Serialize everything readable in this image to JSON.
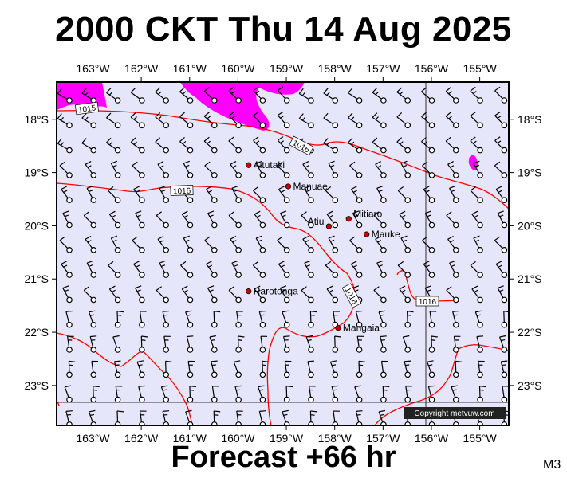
{
  "title": "2000 CKT Thu 14 Aug 2025",
  "subtitle": "Forecast +66 hr",
  "model_code": "M3",
  "copyright": "Copyright metvuw.com",
  "colors": {
    "background": "#e6e6fa",
    "isobar": "#ff0000",
    "precip": "#ff00ff",
    "frame": "#000000"
  },
  "map": {
    "lon_labels": [
      "163°W",
      "162°W",
      "161°W",
      "160°W",
      "159°W",
      "158°W",
      "157°W",
      "156°W",
      "155°W"
    ],
    "lat_labels": [
      "18°S",
      "19°S",
      "20°S",
      "21°S",
      "22°S",
      "23°S"
    ],
    "lon_values": [
      -163,
      -162,
      -161,
      -160,
      -159,
      -158,
      -157,
      -156,
      -155
    ],
    "lat_values": [
      -18,
      -19,
      -20,
      -21,
      -22,
      -23
    ],
    "extent": {
      "lon_min": -163.75,
      "lon_max": -154.4,
      "lat_max": -17.3,
      "lat_min": -23.75
    }
  },
  "places": [
    {
      "name": "Aitutaki",
      "lon": -159.78,
      "lat": -18.86
    },
    {
      "name": "Manuae",
      "lon": -158.96,
      "lat": -19.26
    },
    {
      "name": "Mitiaro",
      "lon": -157.71,
      "lat": -19.87
    },
    {
      "name": "Atiu",
      "lon": -158.12,
      "lat": -20.01
    },
    {
      "name": "Mauke",
      "lon": -157.34,
      "lat": -20.16
    },
    {
      "name": "Rarotonga",
      "lon": -159.78,
      "lat": -21.23
    },
    {
      "name": "Mangaia",
      "lon": -157.93,
      "lat": -21.92
    }
  ],
  "isobar_labels": [
    "1015",
    "1016",
    "1016",
    "1016",
    "1016"
  ]
}
